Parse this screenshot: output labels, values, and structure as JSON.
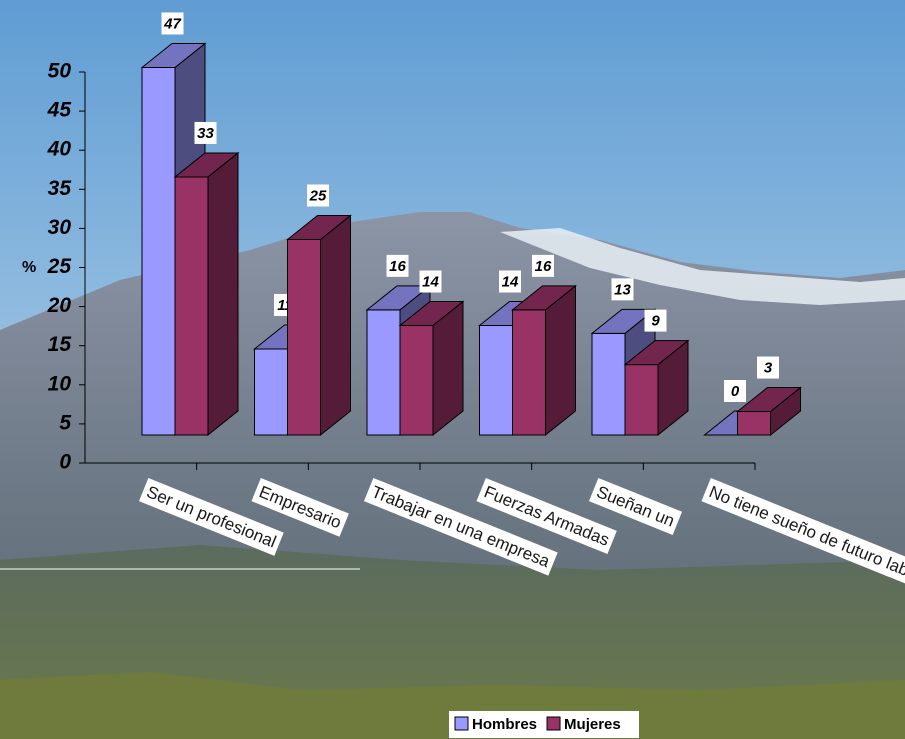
{
  "chart_data": {
    "type": "bar3d",
    "y_label": "%",
    "categories": [
      "Ser un profesional",
      "Empresario",
      "Trabajar en una empresa",
      "Fuerzas Armadas",
      "Sueñan un",
      "No tiene sueño de futuro laboral"
    ],
    "series": [
      {
        "name": "Hombres",
        "color": "#9999ff",
        "values": [
          47,
          11,
          16,
          14,
          13,
          0
        ]
      },
      {
        "name": "Mujeres",
        "color": "#993366",
        "values": [
          33,
          25,
          14,
          16,
          9,
          3
        ]
      }
    ],
    "ylim": [
      0,
      50
    ],
    "yticks": [
      0,
      5,
      10,
      15,
      20,
      25,
      30,
      35,
      40,
      45,
      50
    ]
  }
}
